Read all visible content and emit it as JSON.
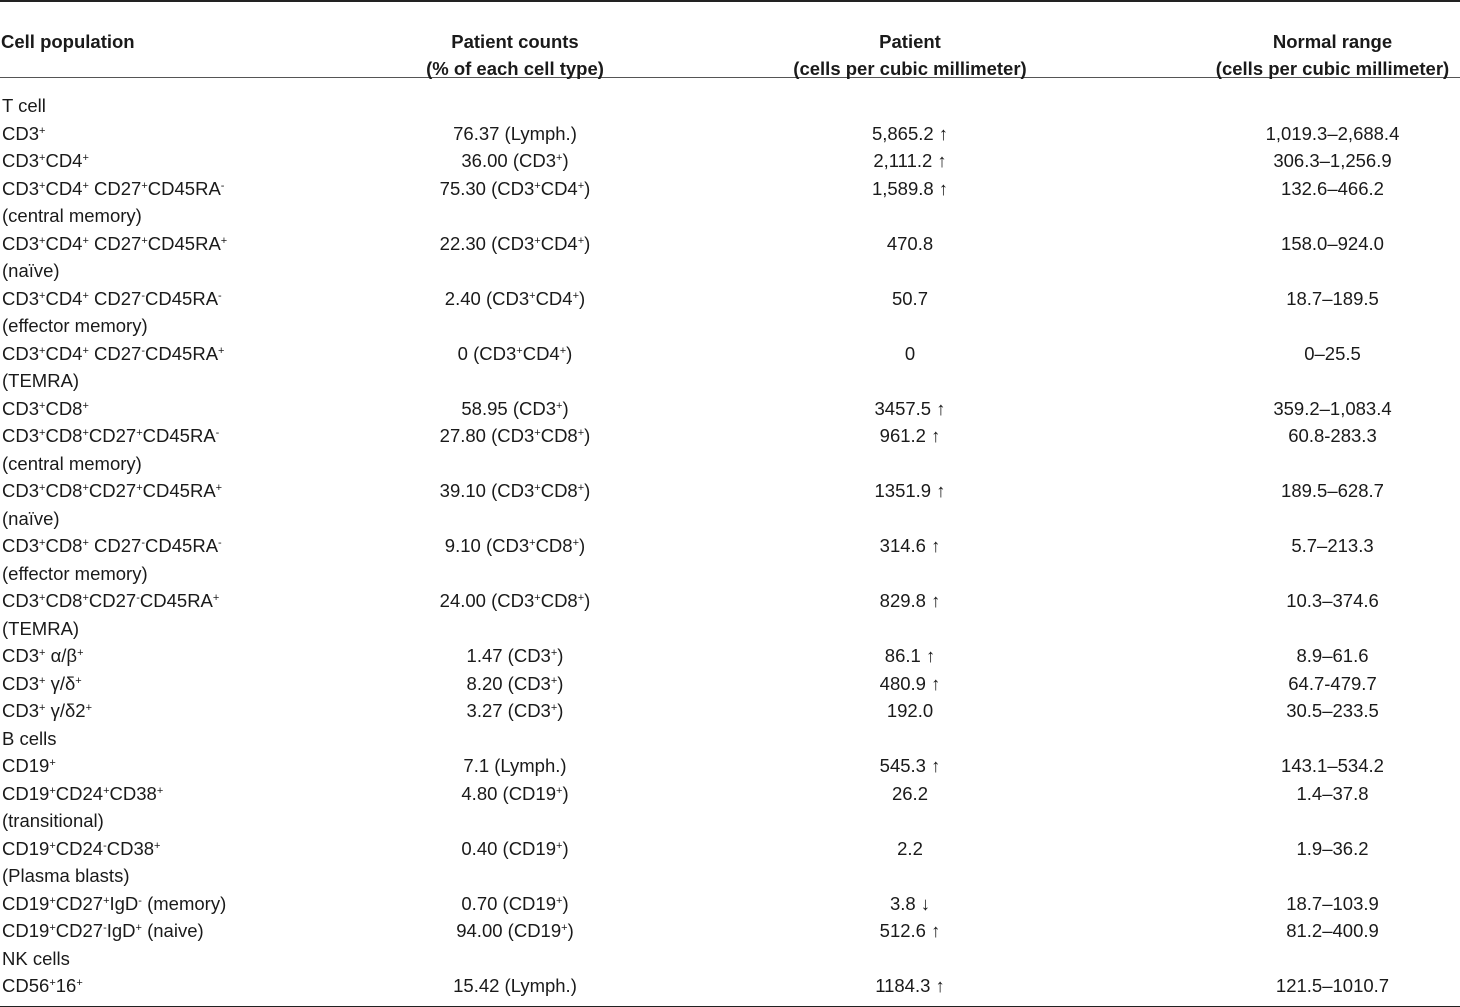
{
  "table": {
    "headers": {
      "col1": "Cell population",
      "col2_line1": "Patient counts",
      "col2_line2": "(% of each cell type)",
      "col3_line1": "Patient",
      "col3_line2": "(cells per cubic millimeter)",
      "col4_line1": "Normal range",
      "col4_line2": "(cells per cubic millimeter)"
    },
    "rows": [
      {
        "kind": "group",
        "label": "T cell"
      },
      {
        "label": "CD3<sup>+</sup>",
        "pct": "76.37 (Lymph.)",
        "count": "5,865.2 ↑",
        "range": "1,019.3–2,688.4"
      },
      {
        "label": "CD3<sup>+</sup>CD4<sup>+</sup>",
        "pct": "36.00 (CD3<sup>+</sup>)",
        "count": "2,111.2 ↑",
        "range": "306.3–1,256.9"
      },
      {
        "label": "CD3<sup>+</sup>CD4<sup>+</sup> CD27<sup>+</sup>CD45RA<sup>-</sup>",
        "sub": "(central memory)",
        "pct": "75.30 (CD3<sup>+</sup>CD4<sup>+</sup>)",
        "count": "1,589.8 ↑",
        "range": "132.6–466.2"
      },
      {
        "label": "CD3<sup>+</sup>CD4<sup>+</sup> CD27<sup>+</sup>CD45RA<sup>+</sup>",
        "sub": "(naïve)",
        "pct": "22.30 (CD3<sup>+</sup>CD4<sup>+</sup>)",
        "count": "470.8",
        "range": "158.0–924.0"
      },
      {
        "label": "CD3<sup>+</sup>CD4<sup>+</sup> CD27<sup>-</sup>CD45RA<sup>-</sup>",
        "sub": "(effector memory)",
        "pct": "2.40 (CD3<sup>+</sup>CD4<sup>+</sup>)",
        "count": "50.7",
        "range": "18.7–189.5"
      },
      {
        "label": "CD3<sup>+</sup>CD4<sup>+</sup> CD27<sup>-</sup>CD45RA<sup>+</sup>",
        "sub": "(TEMRA)",
        "pct": "0 (CD3<sup>+</sup>CD4<sup>+</sup>)",
        "count": "0",
        "range": "0–25.5"
      },
      {
        "label": "CD3<sup>+</sup>CD8<sup>+</sup>",
        "pct": "58.95 (CD3<sup>+</sup>)",
        "count": "3457.5 ↑",
        "range": "359.2–1,083.4"
      },
      {
        "label": "CD3<sup>+</sup>CD8<sup>+</sup>CD27<sup>+</sup>CD45RA<sup>-</sup>",
        "sub": "(central memory)",
        "pct": "27.80 (CD3<sup>+</sup>CD8<sup>+</sup>)",
        "count": "961.2 ↑",
        "range": "60.8-283.3"
      },
      {
        "label": "CD3<sup>+</sup>CD8<sup>+</sup>CD27<sup>+</sup>CD45RA<sup>+</sup>",
        "sub": "(naïve)",
        "pct": "39.10 (CD3<sup>+</sup>CD8<sup>+</sup>)",
        "count": "1351.9 ↑",
        "range": "189.5–628.7"
      },
      {
        "label": "CD3<sup>+</sup>CD8<sup>+</sup> CD27<sup>-</sup>CD45RA<sup>-</sup>",
        "sub": "(effector memory)",
        "pct": "9.10 (CD3<sup>+</sup>CD8<sup>+</sup>)",
        "count": "314.6 ↑",
        "range": "5.7–213.3"
      },
      {
        "label": "CD3<sup>+</sup>CD8<sup>+</sup>CD27<sup>-</sup>CD45RA<sup>+</sup>",
        "sub": "(TEMRA)",
        "pct": "24.00 (CD3<sup>+</sup>CD8<sup>+</sup>)",
        "count": "829.8 ↑",
        "range": "10.3–374.6"
      },
      {
        "label": "CD3<sup>+</sup> α/β<sup>+</sup>",
        "pct": "1.47 (CD3<sup>+</sup>)",
        "count": "86.1 ↑",
        "range": "8.9–61.6"
      },
      {
        "label": "CD3<sup>+</sup> γ/δ<sup>+</sup>",
        "pct": "8.20 (CD3<sup>+</sup>)",
        "count": "480.9 ↑",
        "range": "64.7-479.7"
      },
      {
        "label": "CD3<sup>+</sup> γ/δ2<sup>+</sup>",
        "pct": "3.27 (CD3<sup>+</sup>)",
        "count": "192.0",
        "range": "30.5–233.5"
      },
      {
        "kind": "group",
        "label": "B cells"
      },
      {
        "label": "CD19<sup>+</sup>",
        "pct": "7.1 (Lymph.)",
        "count": "545.3 ↑",
        "range": "143.1–534.2"
      },
      {
        "label": "CD19<sup>+</sup>CD24<sup>+</sup>CD38<sup>+</sup>",
        "sub": "(transitional)",
        "pct": "4.80 (CD19<sup>+</sup>)",
        "count": "26.2",
        "range": "1.4–37.8"
      },
      {
        "label": "CD19<sup>+</sup>CD24<sup>-</sup>CD38<sup>+</sup>",
        "sub": "(Plasma blasts)",
        "pct": "0.40 (CD19<sup>+</sup>)",
        "count": "2.2",
        "range": "1.9–36.2"
      },
      {
        "label": "CD19<sup>+</sup>CD27<sup>+</sup>IgD<sup>-</sup> (memory)",
        "pct": "0.70 (CD19<sup>+</sup>)",
        "count": "3.8 ↓",
        "range": "18.7–103.9"
      },
      {
        "label": "CD19<sup>+</sup>CD27<sup>-</sup>IgD<sup>+</sup> (naive)",
        "pct": "94.00 (CD19<sup>+</sup>)",
        "count": "512.6 ↑",
        "range": "81.2–400.9"
      },
      {
        "kind": "group",
        "label": "NK cells"
      },
      {
        "label": "CD56<sup>+</sup>16<sup>+</sup>",
        "pct": "15.42 (Lymph.)",
        "count": "1184.3 ↑",
        "range": "121.5–1010.7"
      }
    ]
  }
}
